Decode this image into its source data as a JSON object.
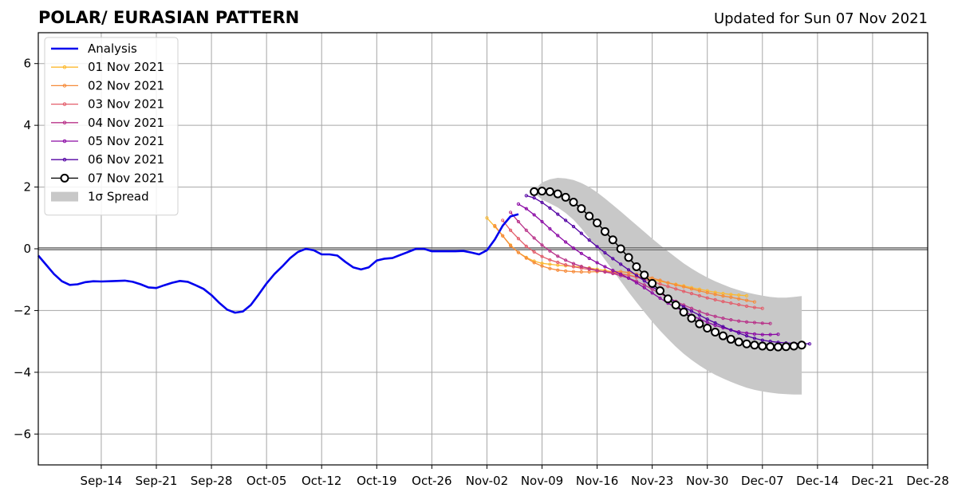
{
  "chart_data": {
    "type": "line",
    "title": "POLAR/ EURASIAN  PATTERN",
    "subtitle": "Updated for Sun 07 Nov 2021",
    "xlabel": "",
    "ylabel": "",
    "x_range": [
      "2021-09-06",
      "2021-12-28"
    ],
    "ylim": [
      -7,
      7
    ],
    "x_ticks": [
      {
        "date": "2021-09-14",
        "label": "Sep-14"
      },
      {
        "date": "2021-09-21",
        "label": "Sep-21"
      },
      {
        "date": "2021-09-28",
        "label": "Sep-28"
      },
      {
        "date": "2021-10-05",
        "label": "Oct-05"
      },
      {
        "date": "2021-10-12",
        "label": "Oct-12"
      },
      {
        "date": "2021-10-19",
        "label": "Oct-19"
      },
      {
        "date": "2021-10-26",
        "label": "Oct-26"
      },
      {
        "date": "2021-11-02",
        "label": "Nov-02"
      },
      {
        "date": "2021-11-09",
        "label": "Nov-09"
      },
      {
        "date": "2021-11-16",
        "label": "Nov-16"
      },
      {
        "date": "2021-11-23",
        "label": "Nov-23"
      },
      {
        "date": "2021-11-30",
        "label": "Nov-30"
      },
      {
        "date": "2021-12-07",
        "label": "Dec-07"
      },
      {
        "date": "2021-12-14",
        "label": "Dec-14"
      },
      {
        "date": "2021-12-21",
        "label": "Dec-21"
      },
      {
        "date": "2021-12-28",
        "label": "Dec-28"
      }
    ],
    "y_ticks": [
      {
        "value": 6,
        "label": "6"
      },
      {
        "value": 4,
        "label": "4"
      },
      {
        "value": 2,
        "label": "2"
      },
      {
        "value": 0,
        "label": "0"
      },
      {
        "value": -2,
        "label": "−2"
      },
      {
        "value": -4,
        "label": "−4"
      },
      {
        "value": -6,
        "label": "−6"
      }
    ],
    "grid": true,
    "legend_position": "top-left",
    "zero_line": true,
    "analysis": {
      "name": "Analysis",
      "color": "#0000ee",
      "start": "2021-09-06",
      "values": [
        -0.22,
        -0.52,
        -0.82,
        -1.05,
        -1.17,
        -1.15,
        -1.08,
        -1.05,
        -1.06,
        -1.05,
        -1.04,
        -1.03,
        -1.07,
        -1.15,
        -1.25,
        -1.27,
        -1.18,
        -1.1,
        -1.04,
        -1.07,
        -1.18,
        -1.3,
        -1.5,
        -1.75,
        -1.97,
        -2.07,
        -2.03,
        -1.82,
        -1.48,
        -1.12,
        -0.82,
        -0.57,
        -0.3,
        -0.1,
        0.0,
        -0.05,
        -0.18,
        -0.18,
        -0.22,
        -0.42,
        -0.6,
        -0.67,
        -0.6,
        -0.38,
        -0.32,
        -0.3,
        -0.2,
        -0.1,
        0.0,
        0.0,
        -0.08,
        -0.08,
        -0.08,
        -0.08,
        -0.07,
        -0.12,
        -0.18,
        -0.05,
        0.3,
        0.75,
        1.05,
        1.12
      ]
    },
    "forecasts": [
      {
        "name": "01 Nov 2021",
        "color": "#fcb92f",
        "start": "2021-11-02",
        "values": [
          1.0,
          0.72,
          0.42,
          0.12,
          -0.12,
          -0.28,
          -0.4,
          -0.47,
          -0.5,
          -0.53,
          -0.55,
          -0.57,
          -0.59,
          -0.62,
          -0.66,
          -0.7,
          -0.75,
          -0.8,
          -0.85,
          -0.9,
          -0.95,
          -1.0,
          -1.05,
          -1.1,
          -1.15,
          -1.2,
          -1.26,
          -1.31,
          -1.36,
          -1.41,
          -1.45,
          -1.48,
          -1.5,
          -1.52
        ]
      },
      {
        "name": "02 Nov 2021",
        "color": "#f68b3a",
        "start": "2021-11-03",
        "values": [
          0.75,
          0.42,
          0.1,
          -0.12,
          -0.3,
          -0.45,
          -0.56,
          -0.64,
          -0.69,
          -0.72,
          -0.74,
          -0.75,
          -0.75,
          -0.74,
          -0.73,
          -0.73,
          -0.74,
          -0.77,
          -0.82,
          -0.88,
          -0.95,
          -1.02,
          -1.1,
          -1.17,
          -1.23,
          -1.3,
          -1.36,
          -1.42,
          -1.48,
          -1.53,
          -1.57,
          -1.62,
          -1.67,
          -1.72
        ]
      },
      {
        "name": "03 Nov 2021",
        "color": "#e35d6a",
        "start": "2021-11-04",
        "values": [
          0.92,
          0.6,
          0.33,
          0.08,
          -0.1,
          -0.25,
          -0.36,
          -0.44,
          -0.52,
          -0.58,
          -0.63,
          -0.67,
          -0.71,
          -0.75,
          -0.78,
          -0.82,
          -0.86,
          -0.92,
          -0.99,
          -1.06,
          -1.14,
          -1.22,
          -1.3,
          -1.38,
          -1.45,
          -1.52,
          -1.59,
          -1.65,
          -1.71,
          -1.76,
          -1.81,
          -1.86,
          -1.9,
          -1.93
        ]
      },
      {
        "name": "04 Nov 2021",
        "color": "#b83289",
        "start": "2021-11-05",
        "values": [
          1.18,
          0.88,
          0.6,
          0.35,
          0.12,
          -0.07,
          -0.24,
          -0.37,
          -0.48,
          -0.57,
          -0.64,
          -0.7,
          -0.75,
          -0.8,
          -0.87,
          -0.95,
          -1.05,
          -1.17,
          -1.31,
          -1.45,
          -1.58,
          -1.7,
          -1.82,
          -1.93,
          -2.03,
          -2.12,
          -2.19,
          -2.25,
          -2.3,
          -2.34,
          -2.37,
          -2.39,
          -2.41,
          -2.42
        ]
      },
      {
        "name": "05 Nov 2021",
        "color": "#8b0aa5",
        "start": "2021-11-06",
        "values": [
          1.45,
          1.3,
          1.1,
          0.88,
          0.65,
          0.43,
          0.22,
          0.02,
          -0.15,
          -0.31,
          -0.45,
          -0.58,
          -0.7,
          -0.82,
          -0.95,
          -1.1,
          -1.26,
          -1.43,
          -1.6,
          -1.76,
          -1.9,
          -2.03,
          -2.15,
          -2.27,
          -2.38,
          -2.48,
          -2.56,
          -2.63,
          -2.69,
          -2.73,
          -2.76,
          -2.78,
          -2.78,
          -2.77
        ]
      },
      {
        "name": "06 Nov 2021",
        "color": "#5302a3",
        "start": "2021-11-07",
        "values": [
          1.72,
          1.65,
          1.5,
          1.32,
          1.12,
          0.92,
          0.72,
          0.5,
          0.28,
          0.07,
          -0.13,
          -0.32,
          -0.5,
          -0.68,
          -0.86,
          -1.04,
          -1.22,
          -1.4,
          -1.57,
          -1.73,
          -1.88,
          -2.02,
          -2.15,
          -2.28,
          -2.4,
          -2.52,
          -2.63,
          -2.73,
          -2.82,
          -2.9,
          -2.96,
          -3.0,
          -3.03,
          -3.05,
          -3.06,
          -3.07,
          -3.08
        ]
      },
      {
        "name": "07 Nov 2021",
        "color": "#000000",
        "start": "2021-11-08",
        "values": [
          1.85,
          1.87,
          1.85,
          1.78,
          1.67,
          1.51,
          1.3,
          1.06,
          0.84,
          0.56,
          0.29,
          0.0,
          -0.28,
          -0.58,
          -0.85,
          -1.12,
          -1.36,
          -1.62,
          -1.82,
          -2.05,
          -2.25,
          -2.43,
          -2.57,
          -2.7,
          -2.82,
          -2.93,
          -3.02,
          -3.08,
          -3.12,
          -3.15,
          -3.17,
          -3.18,
          -3.17,
          -3.15,
          -3.12
        ]
      }
    ],
    "spread": {
      "name": "1σ Spread",
      "color": "#c8c8c8",
      "start": "2021-11-08",
      "upper": [
        1.9,
        2.15,
        2.25,
        2.3,
        2.28,
        2.23,
        2.13,
        2.0,
        1.83,
        1.63,
        1.42,
        1.21,
        0.99,
        0.77,
        0.55,
        0.33,
        0.12,
        -0.08,
        -0.28,
        -0.47,
        -0.64,
        -0.79,
        -0.93,
        -1.05,
        -1.16,
        -1.26,
        -1.34,
        -1.41,
        -1.47,
        -1.52,
        -1.56,
        -1.58,
        -1.58,
        -1.56,
        -1.53
      ],
      "lower": [
        1.8,
        1.6,
        1.47,
        1.34,
        1.16,
        0.94,
        0.66,
        0.34,
        0.0,
        -0.35,
        -0.7,
        -1.05,
        -1.4,
        -1.73,
        -2.05,
        -2.36,
        -2.65,
        -2.92,
        -3.17,
        -3.4,
        -3.6,
        -3.78,
        -3.94,
        -4.08,
        -4.2,
        -4.31,
        -4.41,
        -4.5,
        -4.57,
        -4.62,
        -4.66,
        -4.69,
        -4.71,
        -4.72,
        -4.72
      ]
    }
  }
}
